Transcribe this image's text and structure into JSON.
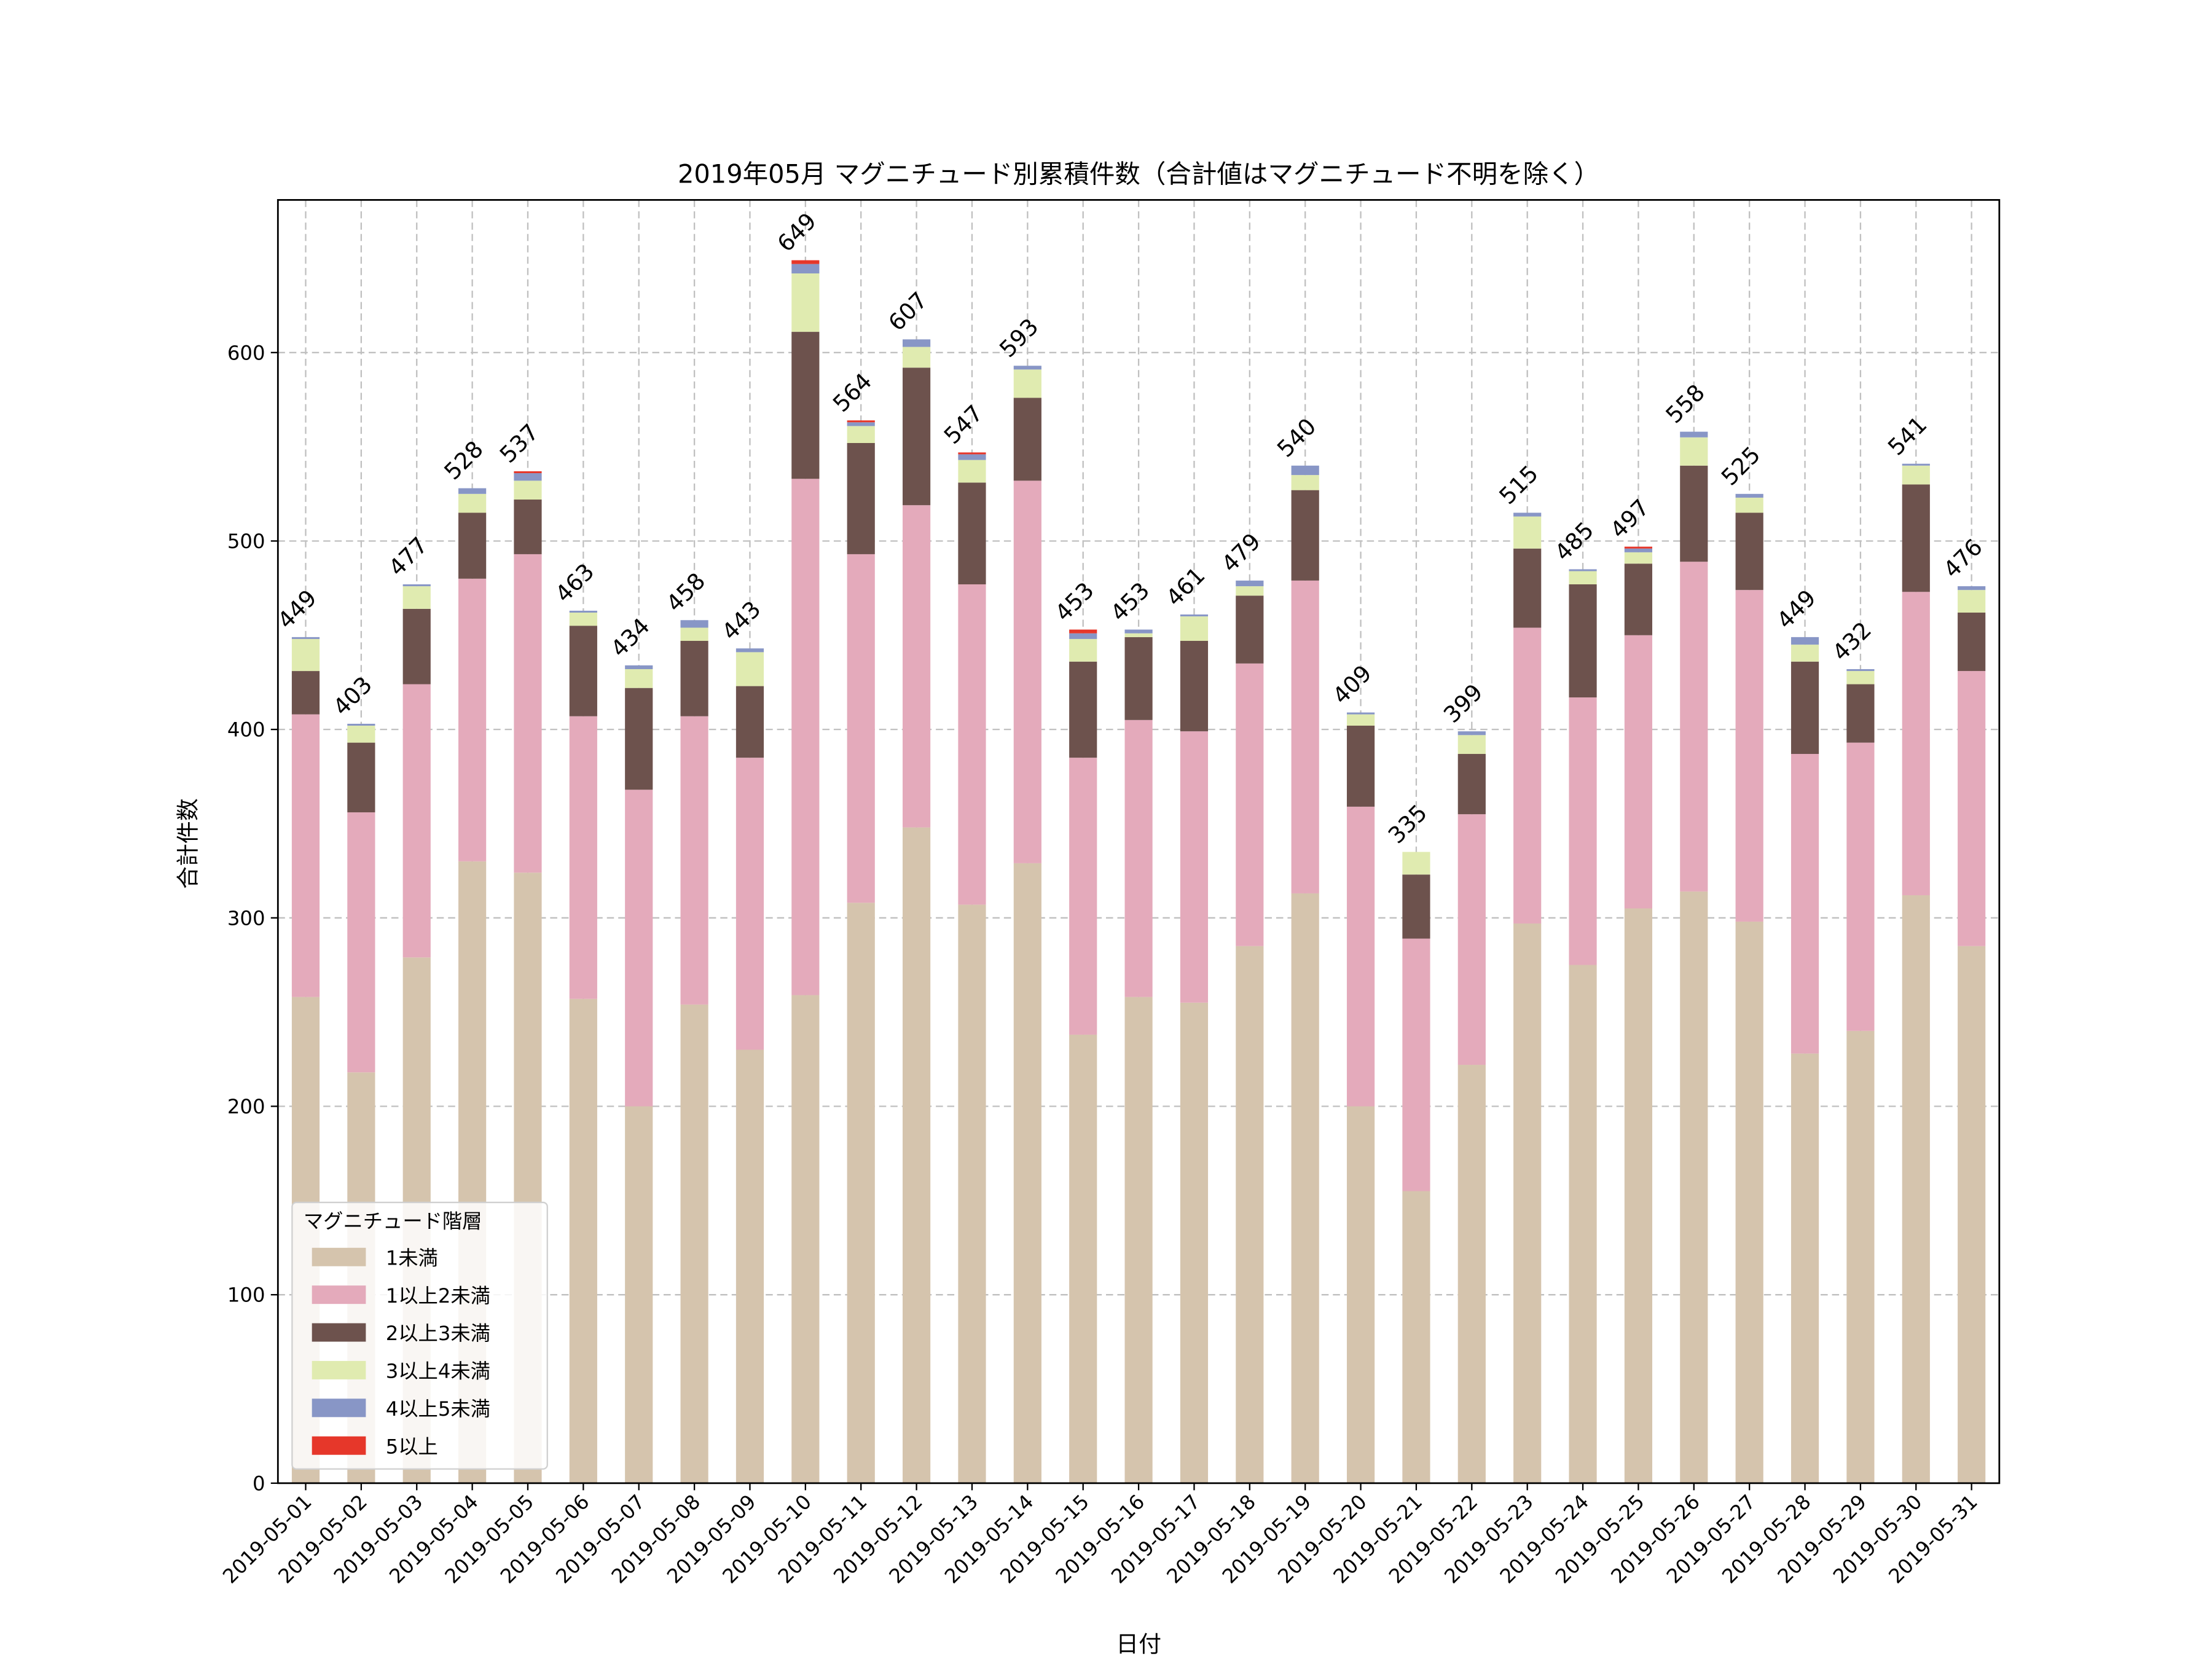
{
  "chart_data": {
    "type": "bar",
    "stacked": true,
    "title": "2019年05月 マグニチュード別累積件数（合計値はマグニチュード不明を除く）",
    "xlabel": "日付",
    "ylabel": "合計件数",
    "ylim": [
      0,
      681
    ],
    "yticks": [
      0,
      100,
      200,
      300,
      400,
      500,
      600
    ],
    "grid": true,
    "legend": {
      "title": "マグニチュード階層",
      "placement": "lower-left"
    },
    "categories": [
      "2019-05-01",
      "2019-05-02",
      "2019-05-03",
      "2019-05-04",
      "2019-05-05",
      "2019-05-06",
      "2019-05-07",
      "2019-05-08",
      "2019-05-09",
      "2019-05-10",
      "2019-05-11",
      "2019-05-12",
      "2019-05-13",
      "2019-05-14",
      "2019-05-15",
      "2019-05-16",
      "2019-05-17",
      "2019-05-18",
      "2019-05-19",
      "2019-05-20",
      "2019-05-21",
      "2019-05-22",
      "2019-05-23",
      "2019-05-24",
      "2019-05-25",
      "2019-05-26",
      "2019-05-27",
      "2019-05-28",
      "2019-05-29",
      "2019-05-30",
      "2019-05-31"
    ],
    "totals": [
      449,
      403,
      477,
      528,
      537,
      463,
      434,
      458,
      443,
      649,
      564,
      607,
      547,
      593,
      453,
      453,
      461,
      479,
      540,
      409,
      335,
      399,
      515,
      485,
      497,
      558,
      525,
      449,
      432,
      541,
      476
    ],
    "series": [
      {
        "name": "1未満",
        "color": "#d5c4ad",
        "values": [
          258,
          218,
          279,
          330,
          324,
          257,
          200,
          254,
          230,
          259,
          308,
          348,
          307,
          329,
          238,
          258,
          255,
          285,
          313,
          200,
          155,
          222,
          297,
          275,
          305,
          314,
          298,
          228,
          240,
          312,
          285
        ]
      },
      {
        "name": "1以上2未満",
        "color": "#e4aabb",
        "values": [
          150,
          138,
          145,
          150,
          169,
          150,
          168,
          153,
          155,
          274,
          185,
          171,
          170,
          203,
          147,
          147,
          144,
          150,
          166,
          159,
          134,
          133,
          157,
          142,
          145,
          175,
          176,
          159,
          153,
          161,
          146
        ]
      },
      {
        "name": "2以上3未満",
        "color": "#6d524d",
        "values": [
          23,
          37,
          40,
          35,
          29,
          48,
          54,
          40,
          38,
          78,
          59,
          73,
          54,
          44,
          51,
          44,
          48,
          36,
          48,
          43,
          34,
          32,
          42,
          60,
          38,
          51,
          41,
          49,
          31,
          57,
          31
        ]
      },
      {
        "name": "3以上4未満",
        "color": "#e0ebb0",
        "values": [
          17,
          9,
          12,
          10,
          10,
          7,
          10,
          7,
          18,
          31,
          9,
          11,
          12,
          15,
          12,
          2,
          13,
          5,
          8,
          6,
          12,
          10,
          17,
          7,
          6,
          15,
          8,
          9,
          7,
          10,
          12
        ]
      },
      {
        "name": "4以上5未満",
        "color": "#8896c6",
        "values": [
          1,
          1,
          1,
          3,
          4,
          1,
          2,
          4,
          2,
          5,
          2,
          4,
          3,
          2,
          3,
          2,
          1,
          3,
          5,
          1,
          0,
          2,
          2,
          1,
          2,
          3,
          2,
          4,
          1,
          1,
          2
        ]
      },
      {
        "name": "5以上",
        "color": "#e6372a",
        "values": [
          0,
          0,
          0,
          0,
          1,
          0,
          0,
          0,
          0,
          2,
          1,
          0,
          1,
          0,
          2,
          0,
          0,
          0,
          0,
          0,
          0,
          0,
          0,
          0,
          1,
          0,
          0,
          0,
          0,
          0,
          0
        ]
      }
    ]
  }
}
